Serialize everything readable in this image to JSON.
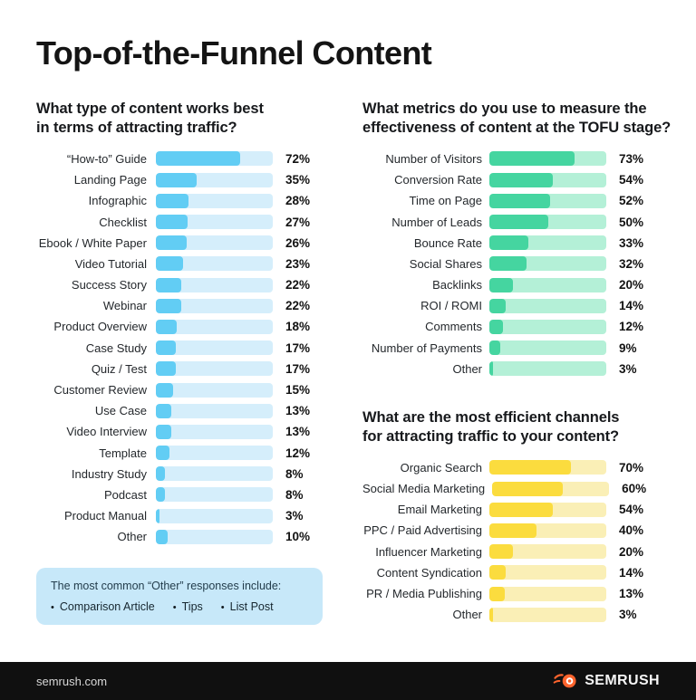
{
  "header": {
    "title": "Top-of-the-Funnel Content"
  },
  "chart_data": [
    {
      "type": "bar",
      "orientation": "horizontal",
      "title": "What type of content works best in terms of attracting traffic?",
      "title_lines": [
        "What type of content works best",
        "in terms of attracting traffic?"
      ],
      "categories": [
        "“How-to” Guide",
        "Landing Page",
        "Infographic",
        "Checklist",
        "Ebook / White Paper",
        "Video Tutorial",
        "Success Story",
        "Webinar",
        "Product Overview",
        "Case Study",
        "Quiz / Test",
        "Customer Review",
        "Use Case",
        "Video Interview",
        "Template",
        "Industry Study",
        "Podcast",
        "Product Manual",
        "Other"
      ],
      "values": [
        72,
        35,
        28,
        27,
        26,
        23,
        22,
        22,
        18,
        17,
        17,
        15,
        13,
        13,
        12,
        8,
        8,
        3,
        10
      ],
      "unit": "%",
      "xlim": [
        0,
        100
      ],
      "grid": false,
      "legend": false,
      "bar_color": "#62cdf4",
      "track_color": "#d5eefb"
    },
    {
      "type": "bar",
      "orientation": "horizontal",
      "title": "What metrics do you use to measure the effectiveness of content at the TOFU stage?",
      "title_lines": [
        "What metrics do you use to measure the",
        "effectiveness of content at the TOFU stage?"
      ],
      "categories": [
        "Number of Visitors",
        "Conversion Rate",
        "Time on Page",
        "Number of Leads",
        "Bounce Rate",
        "Social Shares",
        "Backlinks",
        "ROI / ROMI",
        "Comments",
        "Number of Payments",
        "Other"
      ],
      "values": [
        73,
        54,
        52,
        50,
        33,
        32,
        20,
        14,
        12,
        9,
        3
      ],
      "unit": "%",
      "xlim": [
        0,
        100
      ],
      "grid": false,
      "legend": false,
      "bar_color": "#45d5a0",
      "track_color": "#b4f0d7"
    },
    {
      "type": "bar",
      "orientation": "horizontal",
      "title": "What are the most efficient channels for attracting traffic to your content?",
      "title_lines": [
        "What are the most efficient channels",
        "for attracting traffic to your content?"
      ],
      "categories": [
        "Organic Search",
        "Social Media Marketing",
        "Email Marketing",
        "PPC / Paid Advertising",
        "Influencer Marketing",
        "Content Syndication",
        "PR / Media Publishing",
        "Other"
      ],
      "values": [
        70,
        60,
        54,
        40,
        20,
        14,
        13,
        3
      ],
      "unit": "%",
      "xlim": [
        0,
        100
      ],
      "grid": false,
      "legend": false,
      "bar_color": "#fbdc3e",
      "track_color": "#faefb6"
    }
  ],
  "note": {
    "heading": "The most common “Other” responses include:",
    "bullet": "•",
    "items": [
      "Comparison Article",
      "Tips",
      "List Post"
    ]
  },
  "footer": {
    "site": "semrush.com",
    "brand": "SEMRUSH",
    "brand_color": "#ff642d"
  }
}
